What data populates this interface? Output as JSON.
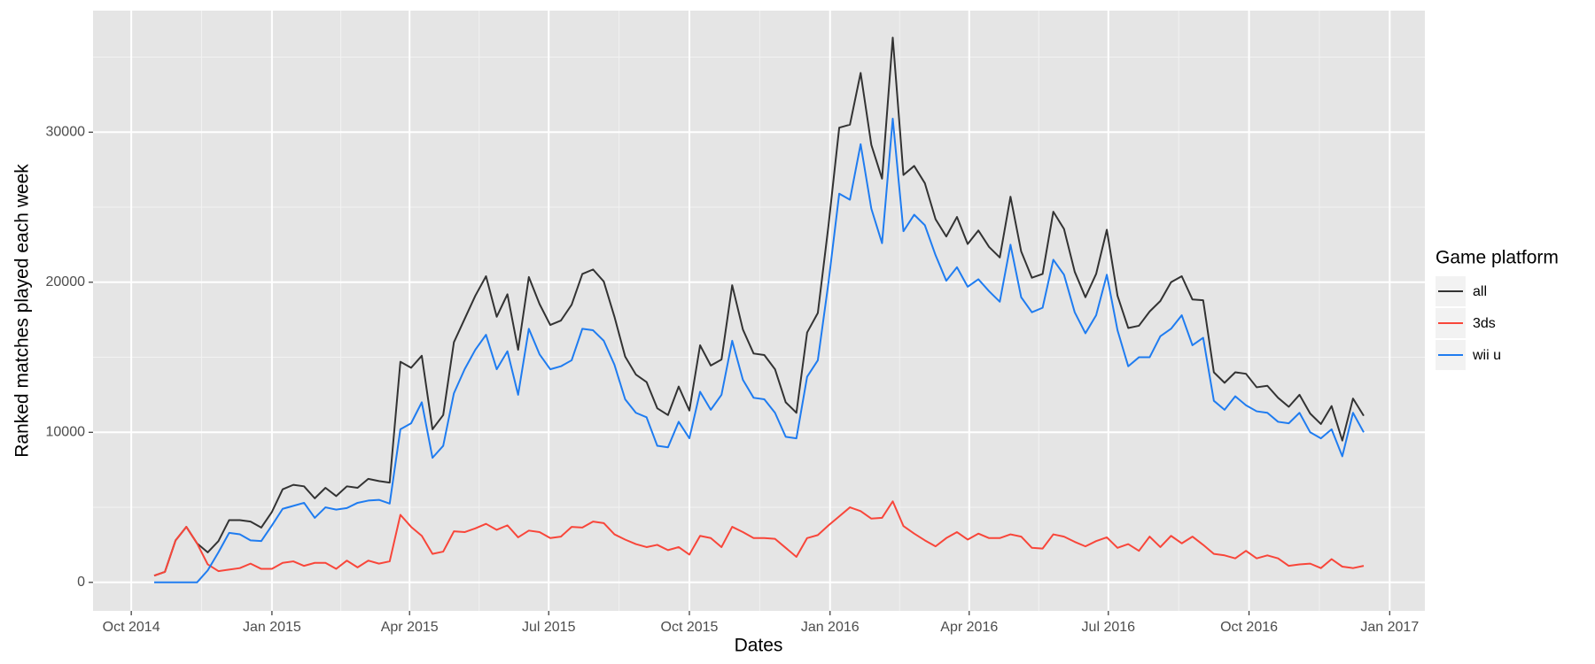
{
  "chart_data": {
    "type": "line",
    "x_label": "Dates",
    "y_label": "Ranked matches played each week",
    "legend_title": "Game platform",
    "legend": "right",
    "grid": true,
    "background": "#e5e5e5",
    "x": [
      "2014-10-16",
      "2014-10-23",
      "2014-10-30",
      "2014-11-06",
      "2014-11-13",
      "2014-11-20",
      "2014-11-27",
      "2014-12-04",
      "2014-12-11",
      "2014-12-18",
      "2014-12-25",
      "2015-01-01",
      "2015-01-08",
      "2015-01-15",
      "2015-01-22",
      "2015-01-29",
      "2015-02-05",
      "2015-02-12",
      "2015-02-19",
      "2015-02-26",
      "2015-03-05",
      "2015-03-12",
      "2015-03-19",
      "2015-03-26",
      "2015-04-02",
      "2015-04-09",
      "2015-04-16",
      "2015-04-23",
      "2015-04-30",
      "2015-05-07",
      "2015-05-14",
      "2015-05-21",
      "2015-05-28",
      "2015-06-04",
      "2015-06-11",
      "2015-06-18",
      "2015-06-25",
      "2015-07-02",
      "2015-07-09",
      "2015-07-16",
      "2015-07-23",
      "2015-07-30",
      "2015-08-06",
      "2015-08-13",
      "2015-08-20",
      "2015-08-27",
      "2015-09-03",
      "2015-09-10",
      "2015-09-17",
      "2015-09-24",
      "2015-10-01",
      "2015-10-08",
      "2015-10-15",
      "2015-10-22",
      "2015-10-29",
      "2015-11-05",
      "2015-11-12",
      "2015-11-19",
      "2015-11-26",
      "2015-12-03",
      "2015-12-10",
      "2015-12-17",
      "2015-12-24",
      "2015-12-31",
      "2016-01-07",
      "2016-01-14",
      "2016-01-21",
      "2016-01-28",
      "2016-02-04",
      "2016-02-11",
      "2016-02-18",
      "2016-02-25",
      "2016-03-03",
      "2016-03-10",
      "2016-03-17",
      "2016-03-24",
      "2016-03-31",
      "2016-04-07",
      "2016-04-14",
      "2016-04-21",
      "2016-04-28",
      "2016-05-05",
      "2016-05-12",
      "2016-05-19",
      "2016-05-26",
      "2016-06-02",
      "2016-06-09",
      "2016-06-16",
      "2016-06-23",
      "2016-06-30",
      "2016-07-07",
      "2016-07-14",
      "2016-07-21",
      "2016-07-28",
      "2016-08-04",
      "2016-08-11",
      "2016-08-18",
      "2016-08-25",
      "2016-09-01",
      "2016-09-08",
      "2016-09-15",
      "2016-09-22",
      "2016-09-29",
      "2016-10-06",
      "2016-10-13",
      "2016-10-20",
      "2016-10-27",
      "2016-11-03",
      "2016-11-10",
      "2016-11-17",
      "2016-11-24",
      "2016-12-01",
      "2016-12-08",
      "2016-12-15"
    ],
    "series": [
      {
        "name": "all",
        "color": "#333333",
        "values": [
          450,
          700,
          2800,
          3700,
          2600,
          2000,
          2750,
          4150,
          4150,
          4050,
          3650,
          4700,
          6200,
          6500,
          6400,
          5600,
          6300,
          5750,
          6400,
          6300,
          6900,
          6750,
          6650,
          14700,
          14300,
          15100,
          10200,
          11150,
          16000,
          17550,
          19100,
          20400,
          17700,
          19200,
          15500,
          20350,
          18550,
          17150,
          17450,
          18500,
          20550,
          20850,
          20050,
          17700,
          15050,
          13850,
          13350,
          11600,
          11150,
          13050,
          11450,
          15800,
          14450,
          14850,
          19800,
          16850,
          15250,
          15150,
          14200,
          12000,
          11300,
          16650,
          17950,
          23800,
          30300,
          30500,
          33950,
          29150,
          26900,
          36300,
          27150,
          27750,
          26600,
          24200,
          23050,
          24350,
          22550,
          23450,
          22350,
          21650,
          25700,
          22050,
          20300,
          20550,
          24700,
          23550,
          20700,
          19000,
          20550,
          23500,
          19100,
          16950,
          17100,
          18050,
          18750,
          20000,
          20400,
          18850,
          18800,
          14000,
          13300,
          14000,
          13900,
          13000,
          13100,
          12300,
          11700,
          12500,
          11250,
          10550,
          11750,
          9450,
          12250,
          11100
        ]
      },
      {
        "name": "3ds",
        "color": "#f8463a",
        "values": [
          450,
          700,
          2800,
          3700,
          2600,
          1200,
          750,
          850,
          950,
          1250,
          900,
          900,
          1300,
          1400,
          1100,
          1300,
          1300,
          900,
          1450,
          1000,
          1450,
          1250,
          1400,
          4500,
          3700,
          3100,
          1900,
          2050,
          3400,
          3350,
          3600,
          3900,
          3500,
          3800,
          3000,
          3450,
          3350,
          2950,
          3050,
          3700,
          3650,
          4050,
          3950,
          3200,
          2850,
          2550,
          2350,
          2500,
          2150,
          2350,
          1850,
          3100,
          2950,
          2350,
          3700,
          3350,
          2950,
          2950,
          2900,
          2300,
          1700,
          2950,
          3150,
          3800,
          4400,
          5000,
          4750,
          4250,
          4300,
          5400,
          3750,
          3250,
          2800,
          2400,
          2950,
          3350,
          2850,
          3250,
          2950,
          2950,
          3200,
          3050,
          2300,
          2250,
          3200,
          3050,
          2700,
          2400,
          2750,
          3000,
          2300,
          2550,
          2100,
          3050,
          2350,
          3100,
          2600,
          3050,
          2500,
          1900,
          1800,
          1600,
          2100,
          1600,
          1800,
          1600,
          1100,
          1200,
          1250,
          950,
          1550,
          1050,
          950,
          1100
        ]
      },
      {
        "name": "wii u",
        "color": "#1f7cf0",
        "values": [
          0,
          0,
          0,
          0,
          0,
          800,
          2000,
          3300,
          3200,
          2800,
          2750,
          3800,
          4900,
          5100,
          5300,
          4300,
          5000,
          4850,
          4950,
          5300,
          5450,
          5500,
          5250,
          10200,
          10600,
          12000,
          8300,
          9100,
          12600,
          14200,
          15500,
          16500,
          14200,
          15400,
          12500,
          16900,
          15200,
          14200,
          14400,
          14800,
          16900,
          16800,
          16100,
          14500,
          12200,
          11300,
          11000,
          9100,
          9000,
          10700,
          9600,
          12700,
          11500,
          12500,
          16100,
          13500,
          12300,
          12200,
          11300,
          9700,
          9600,
          13700,
          14800,
          20000,
          25900,
          25500,
          29200,
          24900,
          22600,
          30900,
          23400,
          24500,
          23800,
          21800,
          20100,
          21000,
          19700,
          20200,
          19400,
          18700,
          22500,
          19000,
          18000,
          18300,
          21500,
          20500,
          18000,
          16600,
          17800,
          20500,
          16800,
          14400,
          15000,
          15000,
          16400,
          16900,
          17800,
          15800,
          16300,
          12100,
          11500,
          12400,
          11800,
          11400,
          11300,
          10700,
          10600,
          11300,
          10000,
          9600,
          10200,
          8400,
          11300,
          10000
        ]
      }
    ],
    "xlim": [
      "2014-09-06",
      "2017-01-24"
    ],
    "xticks": [
      {
        "value": "2014-10-01",
        "label": "Oct 2014"
      },
      {
        "value": "2015-01-01",
        "label": "Jan 2015"
      },
      {
        "value": "2015-04-01",
        "label": "Apr 2015"
      },
      {
        "value": "2015-07-01",
        "label": "Jul 2015"
      },
      {
        "value": "2015-10-01",
        "label": "Oct 2015"
      },
      {
        "value": "2016-01-01",
        "label": "Jan 2016"
      },
      {
        "value": "2016-04-01",
        "label": "Apr 2016"
      },
      {
        "value": "2016-07-01",
        "label": "Jul 2016"
      },
      {
        "value": "2016-10-01",
        "label": "Oct 2016"
      },
      {
        "value": "2017-01-01",
        "label": "Jan 2017"
      }
    ],
    "ylim": [
      -1900,
      38100
    ],
    "yticks": [
      0,
      10000,
      20000,
      30000
    ]
  }
}
